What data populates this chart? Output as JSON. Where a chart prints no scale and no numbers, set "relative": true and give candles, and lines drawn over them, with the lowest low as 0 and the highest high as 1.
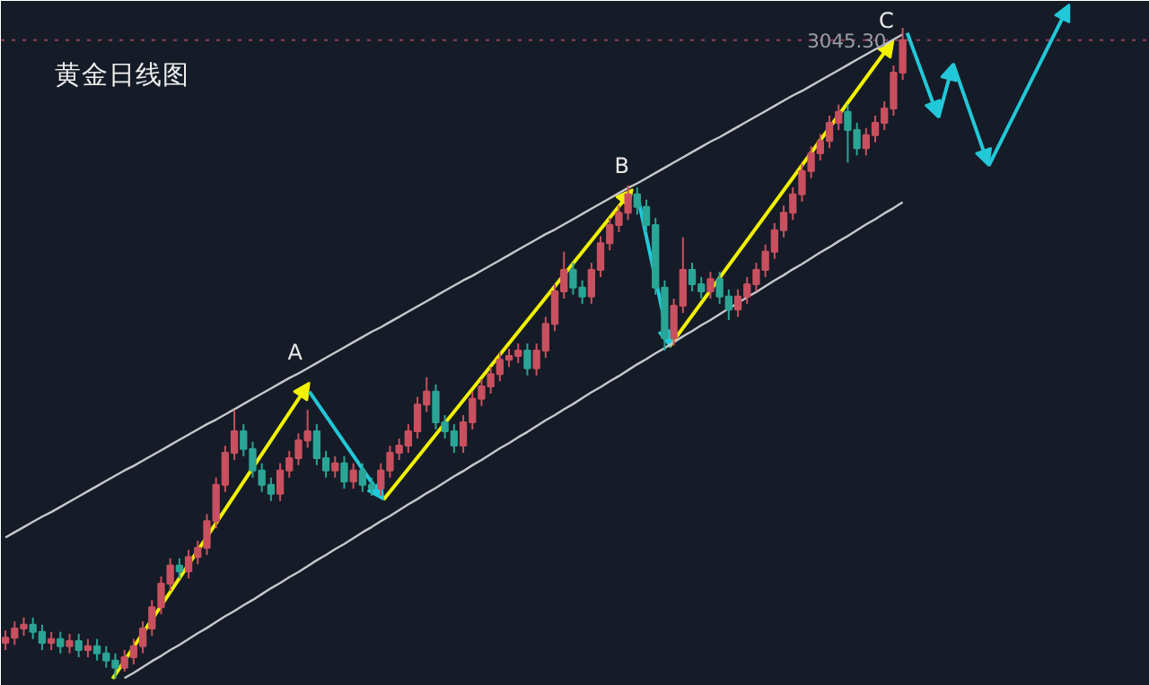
{
  "chart_data": {
    "type": "candlestick",
    "title": "黄金日线图",
    "relative": true,
    "categories": [
      null,
      null,
      null,
      null,
      null,
      null,
      null,
      null,
      null,
      null,
      null,
      null,
      null,
      null,
      null,
      null,
      null,
      null,
      null,
      null,
      null,
      null,
      null,
      null,
      null,
      null,
      null,
      null,
      null,
      null,
      null,
      null,
      null,
      null,
      null,
      null,
      null,
      null,
      null,
      null,
      null,
      null,
      null,
      null,
      null,
      null,
      null,
      null,
      null,
      null,
      null,
      null,
      null,
      null,
      null,
      null,
      null,
      null,
      null,
      null,
      null,
      null,
      null,
      null,
      null,
      null,
      null,
      null,
      null,
      null,
      null,
      null,
      null,
      null,
      null,
      null,
      null,
      null,
      null,
      null,
      null,
      null,
      null,
      null,
      null,
      null,
      null,
      null,
      null,
      null,
      null,
      null,
      null,
      null,
      null,
      null,
      null,
      null,
      null
    ],
    "ohlc": [
      [
        0.055,
        0.074,
        0.044,
        0.063
      ],
      [
        0.063,
        0.088,
        0.052,
        0.077
      ],
      [
        0.077,
        0.094,
        0.066,
        0.083
      ],
      [
        0.083,
        0.094,
        0.061,
        0.072
      ],
      [
        0.072,
        0.083,
        0.044,
        0.055
      ],
      [
        0.055,
        0.072,
        0.044,
        0.061
      ],
      [
        0.061,
        0.072,
        0.039,
        0.05
      ],
      [
        0.05,
        0.069,
        0.039,
        0.058
      ],
      [
        0.058,
        0.069,
        0.033,
        0.044
      ],
      [
        0.044,
        0.061,
        0.033,
        0.05
      ],
      [
        0.05,
        0.061,
        0.028,
        0.039
      ],
      [
        0.039,
        0.05,
        0.017,
        0.028
      ],
      [
        0.028,
        0.039,
        0,
        0.017
      ],
      [
        0.017,
        0.044,
        0.011,
        0.033
      ],
      [
        0.033,
        0.061,
        0.022,
        0.05
      ],
      [
        0.05,
        0.088,
        0.039,
        0.077
      ],
      [
        0.077,
        0.121,
        0.066,
        0.11
      ],
      [
        0.11,
        0.157,
        0.099,
        0.146
      ],
      [
        0.146,
        0.185,
        0.135,
        0.174
      ],
      [
        0.174,
        0.185,
        0.154,
        0.165
      ],
      [
        0.165,
        0.198,
        0.154,
        0.187
      ],
      [
        0.187,
        0.212,
        0.176,
        0.201
      ],
      [
        0.201,
        0.253,
        0.19,
        0.242
      ],
      [
        0.242,
        0.309,
        0.231,
        0.298
      ],
      [
        0.298,
        0.358,
        0.287,
        0.347
      ],
      [
        0.347,
        0.413,
        0.336,
        0.38
      ],
      [
        0.38,
        0.391,
        0.342,
        0.353
      ],
      [
        0.353,
        0.364,
        0.309,
        0.32
      ],
      [
        0.32,
        0.331,
        0.287,
        0.298
      ],
      [
        0.298,
        0.309,
        0.273,
        0.284
      ],
      [
        0.284,
        0.331,
        0.273,
        0.32
      ],
      [
        0.32,
        0.35,
        0.309,
        0.339
      ],
      [
        0.339,
        0.377,
        0.328,
        0.366
      ],
      [
        0.366,
        0.413,
        0.355,
        0.38
      ],
      [
        0.38,
        0.391,
        0.328,
        0.339
      ],
      [
        0.339,
        0.35,
        0.309,
        0.32
      ],
      [
        0.32,
        0.342,
        0.309,
        0.331
      ],
      [
        0.331,
        0.342,
        0.292,
        0.303
      ],
      [
        0.303,
        0.331,
        0.292,
        0.32
      ],
      [
        0.32,
        0.331,
        0.287,
        0.298
      ],
      [
        0.298,
        0.309,
        0.281,
        0.292
      ],
      [
        0.292,
        0.331,
        0.281,
        0.32
      ],
      [
        0.32,
        0.358,
        0.309,
        0.347
      ],
      [
        0.347,
        0.369,
        0.336,
        0.358
      ],
      [
        0.358,
        0.391,
        0.347,
        0.38
      ],
      [
        0.38,
        0.433,
        0.369,
        0.421
      ],
      [
        0.421,
        0.463,
        0.41,
        0.441
      ],
      [
        0.441,
        0.452,
        0.383,
        0.394
      ],
      [
        0.394,
        0.405,
        0.369,
        0.38
      ],
      [
        0.38,
        0.391,
        0.347,
        0.358
      ],
      [
        0.358,
        0.405,
        0.347,
        0.394
      ],
      [
        0.394,
        0.441,
        0.383,
        0.43
      ],
      [
        0.43,
        0.46,
        0.419,
        0.449
      ],
      [
        0.449,
        0.479,
        0.438,
        0.468
      ],
      [
        0.468,
        0.501,
        0.457,
        0.49
      ],
      [
        0.49,
        0.507,
        0.479,
        0.496
      ],
      [
        0.496,
        0.515,
        0.485,
        0.504
      ],
      [
        0.504,
        0.515,
        0.466,
        0.477
      ],
      [
        0.477,
        0.515,
        0.466,
        0.504
      ],
      [
        0.504,
        0.556,
        0.493,
        0.545
      ],
      [
        0.545,
        0.606,
        0.534,
        0.595
      ],
      [
        0.595,
        0.656,
        0.584,
        0.628
      ],
      [
        0.628,
        0.639,
        0.59,
        0.601
      ],
      [
        0.601,
        0.612,
        0.576,
        0.587
      ],
      [
        0.587,
        0.639,
        0.576,
        0.628
      ],
      [
        0.628,
        0.68,
        0.617,
        0.669
      ],
      [
        0.669,
        0.708,
        0.658,
        0.697
      ],
      [
        0.697,
        0.727,
        0.686,
        0.716
      ],
      [
        0.716,
        0.758,
        0.705,
        0.744
      ],
      [
        0.744,
        0.755,
        0.713,
        0.725
      ],
      [
        0.725,
        0.736,
        0.686,
        0.697
      ],
      [
        0.697,
        0.708,
        0.59,
        0.601
      ],
      [
        0.601,
        0.612,
        0.504,
        0.523
      ],
      [
        0.523,
        0.584,
        0.512,
        0.573
      ],
      [
        0.573,
        0.678,
        0.562,
        0.628
      ],
      [
        0.628,
        0.639,
        0.595,
        0.606
      ],
      [
        0.606,
        0.617,
        0.584,
        0.595
      ],
      [
        0.595,
        0.625,
        0.584,
        0.614
      ],
      [
        0.614,
        0.625,
        0.576,
        0.587
      ],
      [
        0.587,
        0.598,
        0.551,
        0.567
      ],
      [
        0.567,
        0.598,
        0.556,
        0.587
      ],
      [
        0.587,
        0.617,
        0.576,
        0.606
      ],
      [
        0.606,
        0.639,
        0.595,
        0.628
      ],
      [
        0.628,
        0.667,
        0.617,
        0.656
      ],
      [
        0.656,
        0.7,
        0.645,
        0.689
      ],
      [
        0.689,
        0.727,
        0.678,
        0.716
      ],
      [
        0.716,
        0.755,
        0.705,
        0.744
      ],
      [
        0.744,
        0.791,
        0.733,
        0.78
      ],
      [
        0.78,
        0.818,
        0.769,
        0.807
      ],
      [
        0.807,
        0.837,
        0.796,
        0.826
      ],
      [
        0.826,
        0.865,
        0.815,
        0.854
      ],
      [
        0.854,
        0.882,
        0.843,
        0.871
      ],
      [
        0.871,
        0.882,
        0.793,
        0.843
      ],
      [
        0.843,
        0.854,
        0.804,
        0.815
      ],
      [
        0.815,
        0.846,
        0.804,
        0.835
      ],
      [
        0.835,
        0.865,
        0.824,
        0.854
      ],
      [
        0.854,
        0.887,
        0.843,
        0.876
      ],
      [
        0.876,
        0.942,
        0.865,
        0.931
      ],
      [
        0.931,
        1,
        0.92,
        0.981
      ]
    ],
    "colors": [
      "#c8505f",
      "#c8505f",
      "#c8505f",
      "#2aa596",
      "#2aa596",
      "#c8505f",
      "#2aa596",
      "#c8505f",
      "#2aa596",
      "#c8505f",
      "#2aa596",
      "#2aa596",
      "#2aa596",
      "#c8505f",
      "#c8505f",
      "#c8505f",
      "#c8505f",
      "#c8505f",
      "#c8505f",
      "#2aa596",
      "#c8505f",
      "#c8505f",
      "#c8505f",
      "#c8505f",
      "#c8505f",
      "#c8505f",
      "#2aa596",
      "#2aa596",
      "#2aa596",
      "#2aa596",
      "#c8505f",
      "#c8505f",
      "#c8505f",
      "#c8505f",
      "#2aa596",
      "#2aa596",
      "#c8505f",
      "#2aa596",
      "#c8505f",
      "#2aa596",
      "#2aa596",
      "#c8505f",
      "#c8505f",
      "#c8505f",
      "#c8505f",
      "#c8505f",
      "#c8505f",
      "#2aa596",
      "#2aa596",
      "#2aa596",
      "#c8505f",
      "#c8505f",
      "#c8505f",
      "#c8505f",
      "#c8505f",
      "#c8505f",
      "#c8505f",
      "#2aa596",
      "#c8505f",
      "#c8505f",
      "#c8505f",
      "#c8505f",
      "#2aa596",
      "#2aa596",
      "#c8505f",
      "#c8505f",
      "#c8505f",
      "#c8505f",
      "#c8505f",
      "#2aa596",
      "#2aa596",
      "#2aa596",
      "#2aa596",
      "#c8505f",
      "#c8505f",
      "#2aa596",
      "#2aa596",
      "#c8505f",
      "#2aa596",
      "#2aa596",
      "#c8505f",
      "#c8505f",
      "#c8505f",
      "#c8505f",
      "#c8505f",
      "#c8505f",
      "#c8505f",
      "#c8505f",
      "#c8505f",
      "#c8505f",
      "#c8505f",
      "#c8505f",
      "#2aa596",
      "#2aa596",
      "#c8505f",
      "#c8505f",
      "#c8505f",
      "#c8505f",
      "#c8505f"
    ],
    "series": [
      {
        "type": "line",
        "color": "#c8c8cc",
        "values": [
          0.217,
          0.225,
          0.233,
          0.241,
          0.249,
          0.256,
          0.264,
          0.272,
          0.28,
          0.288,
          0.296,
          0.304,
          0.312,
          0.32,
          0.327,
          0.335,
          0.343,
          0.351,
          0.359,
          0.367,
          0.375,
          0.383,
          0.391,
          0.398,
          0.406,
          0.414,
          0.422,
          0.43,
          0.438,
          0.446,
          0.454,
          0.462,
          0.469,
          0.477,
          0.485,
          0.493,
          0.501,
          0.509,
          0.517,
          0.525,
          0.533,
          0.54,
          0.548,
          0.556,
          0.564,
          0.572,
          0.58,
          0.588,
          0.596,
          0.604,
          0.612,
          0.619,
          0.627,
          0.635,
          0.643,
          0.651,
          0.659,
          0.667,
          0.675,
          0.683,
          0.69,
          0.698,
          0.706,
          0.714,
          0.722,
          0.73,
          0.738,
          0.746,
          0.754,
          0.761,
          0.769,
          0.777,
          0.785,
          0.793,
          0.801,
          0.809,
          0.817,
          0.825,
          0.832,
          0.84,
          0.848,
          0.856,
          0.864,
          0.872,
          0.88,
          0.888,
          0.896,
          0.903,
          0.911,
          0.919,
          0.927,
          0.935,
          0.943,
          0.951,
          0.959,
          0.967,
          0.974,
          0.982,
          0.99
        ]
      },
      {
        "type": "line",
        "color": "#c8c8cc",
        "values": [
          null,
          null,
          null,
          null,
          null,
          null,
          null,
          null,
          null,
          null,
          null,
          null,
          null,
          0.001,
          0.009,
          0.018,
          0.027,
          0.035,
          0.044,
          0.052,
          0.061,
          0.07,
          0.078,
          0.087,
          0.096,
          0.104,
          0.113,
          0.121,
          0.13,
          0.139,
          0.147,
          0.156,
          0.164,
          0.173,
          0.182,
          0.19,
          0.199,
          0.207,
          0.216,
          0.225,
          0.233,
          0.242,
          0.25,
          0.259,
          0.268,
          0.276,
          0.285,
          0.293,
          0.302,
          0.311,
          0.319,
          0.328,
          0.336,
          0.345,
          0.354,
          0.362,
          0.371,
          0.379,
          0.388,
          0.397,
          0.405,
          0.414,
          0.422,
          0.431,
          0.44,
          0.448,
          0.457,
          0.465,
          0.474,
          0.483,
          0.491,
          0.5,
          0.508,
          0.517,
          0.526,
          0.534,
          0.543,
          0.551,
          0.56,
          0.569,
          0.577,
          0.586,
          0.594,
          0.603,
          0.612,
          0.62,
          0.629,
          0.637,
          0.646,
          0.655,
          0.663,
          0.672,
          0.68,
          0.689,
          0.698,
          0.706,
          0.715,
          0.723,
          0.732
        ]
      }
    ],
    "ref_lines": [
      {
        "axis": "y",
        "value": 0.981,
        "color": "#c8505f",
        "line_style": "dotted"
      }
    ],
    "annotations": [
      "A",
      "B",
      "C",
      "3045.30"
    ]
  }
}
